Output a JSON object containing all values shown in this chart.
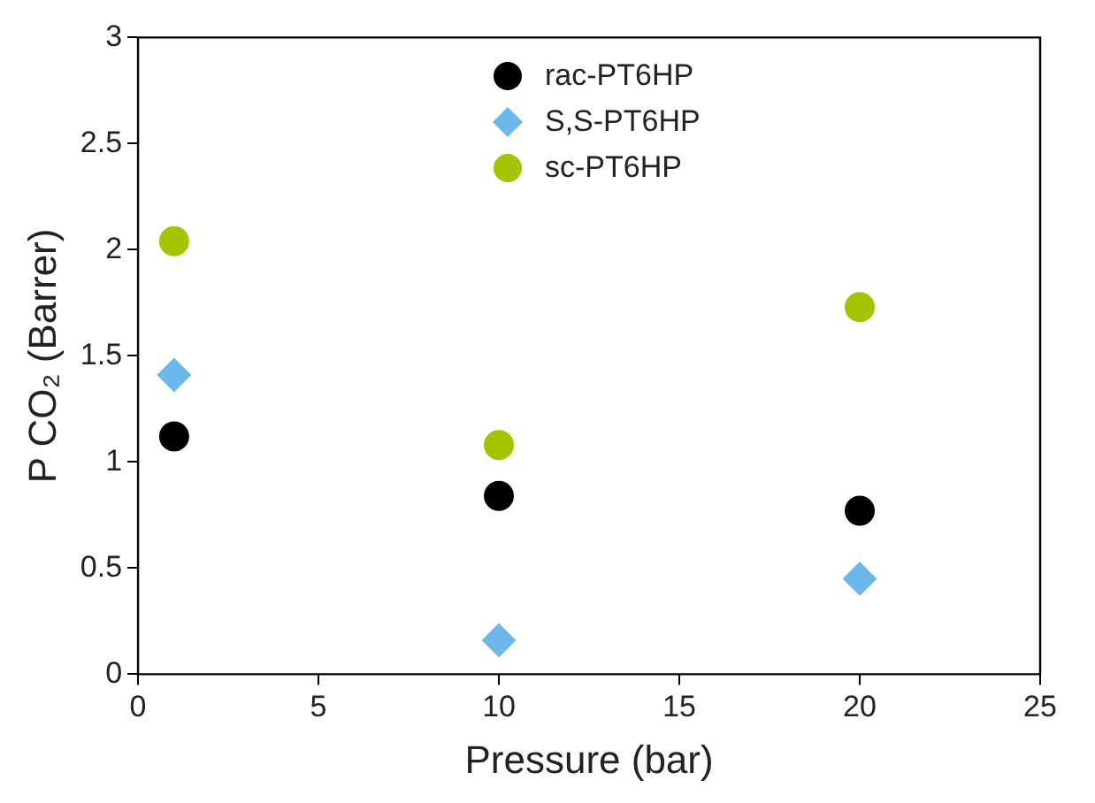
{
  "chart_data": {
    "type": "scatter",
    "xlabel": "Pressure (bar)",
    "ylabel": "P CO₂ (Barrer)",
    "x": [
      1,
      10,
      20
    ],
    "series": [
      {
        "name": "rac-PT6HP",
        "color": "#000000",
        "marker": "circle",
        "values": [
          1.12,
          0.84,
          0.77
        ]
      },
      {
        "name": "S,S-PT6HP",
        "color": "#6cb8ea",
        "marker": "diamond",
        "values": [
          1.41,
          0.16,
          0.45
        ]
      },
      {
        "name": "sc-PT6HP",
        "color": "#a5c400",
        "marker": "circle",
        "values": [
          2.04,
          1.08,
          1.73
        ]
      }
    ],
    "xlim": [
      0,
      25
    ],
    "xticks": [
      0,
      5,
      10,
      15,
      20,
      25
    ],
    "ylim": [
      0,
      3
    ],
    "yticks": [
      0,
      0.5,
      1,
      1.5,
      2,
      2.5,
      3
    ],
    "grid": false,
    "legend": "top"
  }
}
